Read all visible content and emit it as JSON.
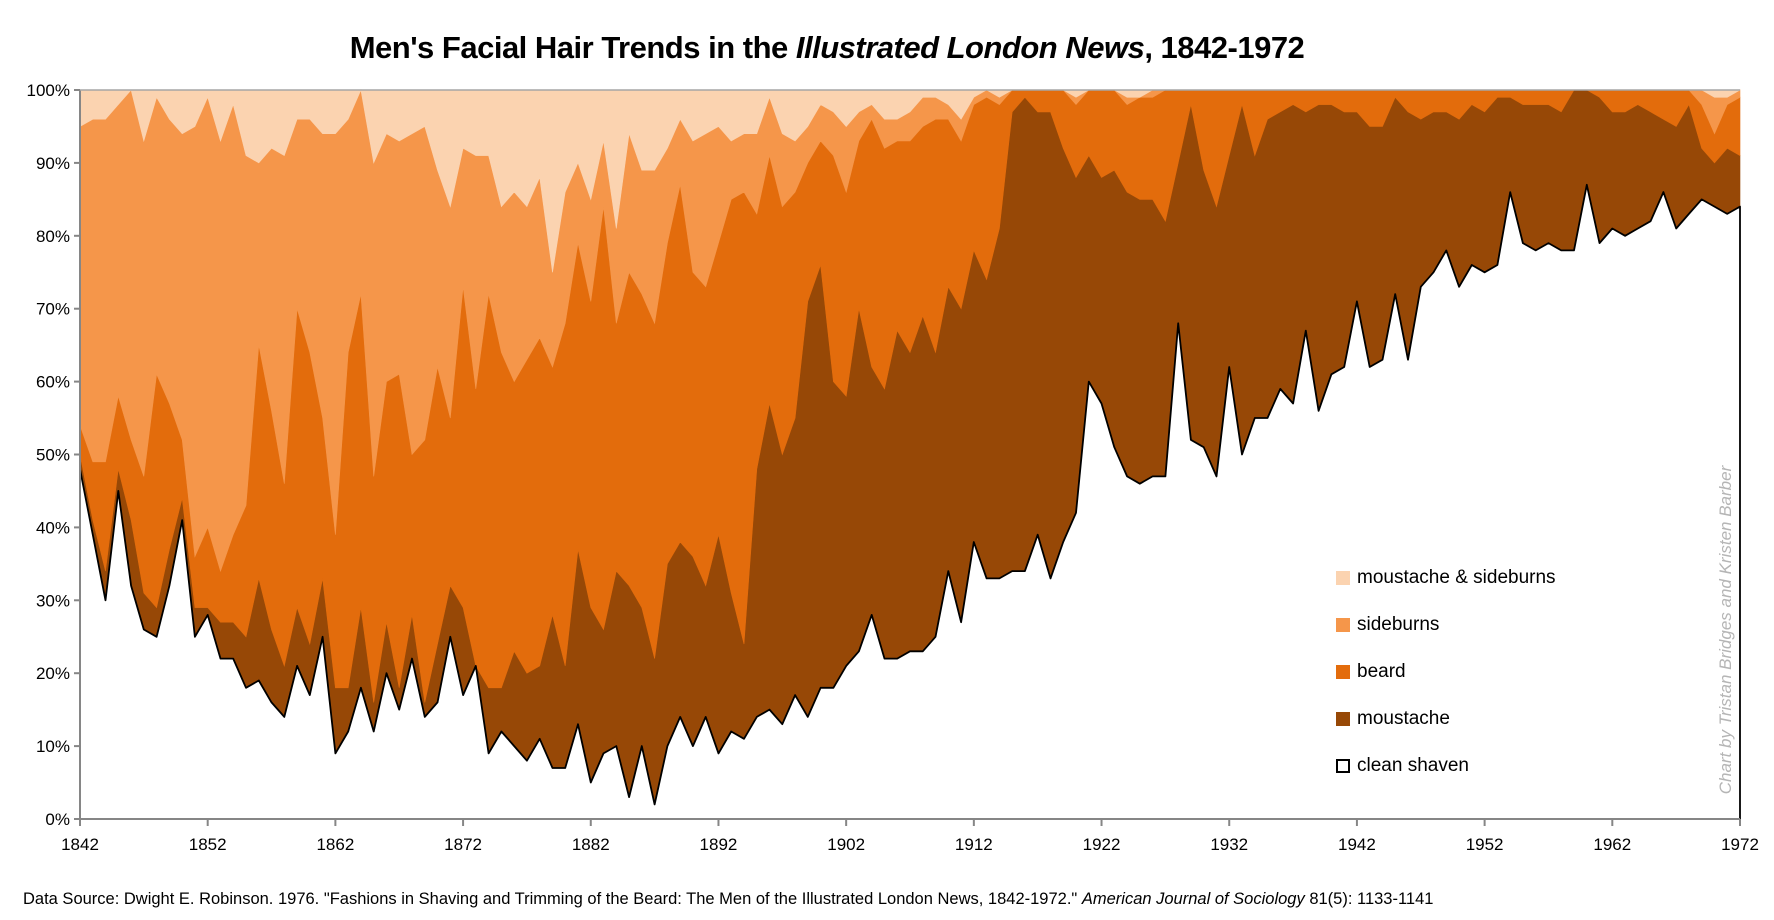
{
  "chart_data": {
    "type": "area",
    "stacked": true,
    "title": {
      "prefix": "Men's Facial Hair Trends in the ",
      "italic": "Illustrated London News",
      "suffix": ", 1842-1972"
    },
    "xlabel": "",
    "ylabel": "",
    "xlim": [
      1842,
      1972
    ],
    "ylim": [
      0,
      100
    ],
    "x_start": 1842,
    "x_ticks": [
      "1842",
      "1852",
      "1862",
      "1872",
      "1882",
      "1892",
      "1902",
      "1912",
      "1922",
      "1932",
      "1942",
      "1952",
      "1962",
      "1972"
    ],
    "y_ticks": [
      "0%",
      "10%",
      "20%",
      "30%",
      "40%",
      "50%",
      "60%",
      "70%",
      "80%",
      "90%",
      "100%"
    ],
    "legend_position": "right",
    "series": [
      {
        "name": "clean shaven",
        "color": "#ffffff",
        "values": [
          48,
          39,
          30,
          45,
          32,
          26,
          25,
          32,
          41,
          25,
          28,
          22,
          22,
          18,
          19,
          16,
          14,
          21,
          17,
          25,
          9,
          12,
          18,
          12,
          20,
          15,
          22,
          14,
          16,
          25,
          17,
          21,
          9,
          12,
          10,
          8,
          11,
          7,
          7,
          13,
          5,
          9,
          10,
          3,
          10,
          2,
          10,
          14,
          10,
          14,
          9,
          12,
          11,
          14,
          15,
          13,
          17,
          14,
          18,
          18,
          21,
          23,
          28,
          22,
          22,
          23,
          23,
          25,
          34,
          27,
          38,
          33,
          33,
          34,
          34,
          39,
          33,
          38,
          42,
          60,
          57,
          51,
          47,
          46,
          47,
          47,
          68,
          52,
          51,
          47,
          62,
          50,
          55,
          55,
          59,
          57,
          67,
          56,
          61,
          62,
          71,
          62,
          63,
          72,
          63,
          73,
          75,
          78,
          73,
          76,
          75,
          76,
          86,
          79,
          78,
          79,
          78,
          78,
          87,
          79,
          81,
          80,
          81,
          82,
          86,
          81,
          83,
          85,
          84,
          83,
          84
        ]
      },
      {
        "name": "moustache",
        "color": "#974806",
        "values": [
          2,
          2,
          4,
          3,
          9,
          5,
          4,
          5,
          3,
          4,
          1,
          5,
          5,
          7,
          14,
          10,
          7,
          8,
          7,
          8,
          9,
          6,
          11,
          4,
          7,
          3,
          6,
          2,
          8,
          7,
          12,
          0,
          9,
          6,
          13,
          12,
          10,
          21,
          14,
          24,
          24,
          17,
          24,
          29,
          19,
          20,
          25,
          24,
          26,
          18,
          30,
          19,
          13,
          34,
          42,
          37,
          38,
          57,
          58,
          42,
          37,
          47,
          34,
          37,
          45,
          41,
          46,
          39,
          39,
          43,
          40,
          41,
          48,
          63,
          65,
          58,
          64,
          54,
          46,
          31,
          31,
          38,
          39,
          39,
          38,
          35,
          22,
          46,
          38,
          37,
          29,
          48,
          36,
          41,
          38,
          41,
          30,
          42,
          37,
          35,
          26,
          33,
          32,
          27,
          34,
          23,
          22,
          19,
          23,
          22,
          22,
          23,
          13,
          19,
          20,
          19,
          19,
          22,
          13,
          20,
          16,
          17,
          17,
          15,
          10,
          14,
          15,
          7,
          6,
          9,
          7
        ]
      },
      {
        "name": "beard",
        "color": "#e36c0c",
        "values": [
          4,
          8,
          15,
          10,
          11,
          16,
          32,
          20,
          8,
          7,
          11,
          7,
          12,
          18,
          32,
          30,
          25,
          41,
          40,
          22,
          21,
          46,
          43,
          31,
          33,
          43,
          22,
          36,
          38,
          23,
          44,
          38,
          54,
          46,
          37,
          43,
          45,
          34,
          47,
          42,
          42,
          58,
          34,
          43,
          43,
          46,
          44,
          49,
          39,
          41,
          40,
          54,
          62,
          35,
          34,
          34,
          31,
          19,
          17,
          31,
          28,
          23,
          34,
          33,
          26,
          29,
          26,
          32,
          23,
          23,
          20,
          25,
          17,
          3,
          1,
          3,
          3,
          8,
          10,
          9,
          12,
          11,
          12,
          14,
          14,
          18,
          10,
          2,
          11,
          16,
          9,
          2,
          9,
          4,
          3,
          2,
          3,
          2,
          2,
          3,
          3,
          5,
          5,
          1,
          3,
          4,
          3,
          3,
          4,
          2,
          3,
          1,
          1,
          2,
          2,
          2,
          3,
          0,
          0,
          1,
          3,
          3,
          2,
          3,
          4,
          5,
          2,
          6,
          4,
          6,
          8
        ]
      },
      {
        "name": "sideburns",
        "color": "#f5964a",
        "values": [
          41,
          47,
          47,
          40,
          48,
          46,
          38,
          39,
          42,
          59,
          59,
          59,
          59,
          48,
          25,
          36,
          45,
          26,
          32,
          39,
          55,
          32,
          28,
          43,
          34,
          32,
          44,
          43,
          27,
          29,
          19,
          32,
          19,
          20,
          26,
          21,
          22,
          13,
          18,
          11,
          14,
          9,
          13,
          19,
          17,
          21,
          13,
          9,
          18,
          21,
          16,
          8,
          8,
          11,
          8,
          10,
          7,
          5,
          5,
          6,
          9,
          4,
          2,
          4,
          3,
          4,
          4,
          3,
          2,
          3,
          1,
          1,
          1,
          0,
          0,
          0,
          0,
          0,
          1,
          0,
          0,
          0,
          1,
          0,
          1,
          0,
          0,
          0,
          0,
          0,
          0,
          0,
          0,
          0,
          0,
          0,
          0,
          0,
          0,
          0,
          0,
          0,
          0,
          0,
          0,
          0,
          0,
          0,
          0,
          0,
          0,
          0,
          0,
          0,
          0,
          0,
          0,
          0,
          0,
          0,
          0,
          0,
          0,
          0,
          0,
          0,
          0,
          2,
          5,
          1,
          1
        ]
      },
      {
        "name": "moustache & sideburns",
        "color": "#fbd3b0",
        "values": [
          5,
          4,
          4,
          2,
          0,
          7,
          1,
          4,
          6,
          5,
          1,
          7,
          2,
          9,
          10,
          8,
          9,
          4,
          4,
          6,
          6,
          4,
          0,
          10,
          6,
          7,
          6,
          5,
          11,
          16,
          8,
          9,
          9,
          16,
          14,
          16,
          12,
          25,
          14,
          10,
          15,
          7,
          19,
          6,
          11,
          11,
          8,
          4,
          7,
          6,
          5,
          7,
          6,
          6,
          1,
          6,
          7,
          5,
          2,
          3,
          5,
          3,
          2,
          4,
          4,
          3,
          1,
          1,
          2,
          4,
          1,
          0,
          1,
          0,
          0,
          0,
          0,
          0,
          1,
          0,
          0,
          0,
          1,
          1,
          0,
          0,
          0,
          0,
          0,
          0,
          0,
          0,
          0,
          0,
          0,
          0,
          0,
          0,
          0,
          0,
          0,
          0,
          0,
          0,
          0,
          0,
          0,
          0,
          0,
          0,
          0,
          0,
          0,
          0,
          0,
          0,
          0,
          0,
          0,
          0,
          0,
          0,
          0,
          0,
          0,
          0,
          0,
          0,
          1,
          1,
          0
        ]
      }
    ],
    "legend_order": [
      "moustache & sideburns",
      "sideburns",
      "beard",
      "moustache",
      "clean shaven"
    ]
  },
  "source": {
    "prefix": "Data Source: Dwight E. Robinson. 1976. \"Fashions in Shaving and Trimming of the Beard: The Men of the Illustrated London News, 1842-1972.\" ",
    "journal": "American Journal of Sociology",
    "suffix": " 81(5): 1133-1141"
  },
  "credit": "Chart by Tristan Bridges and Kristen Barber"
}
